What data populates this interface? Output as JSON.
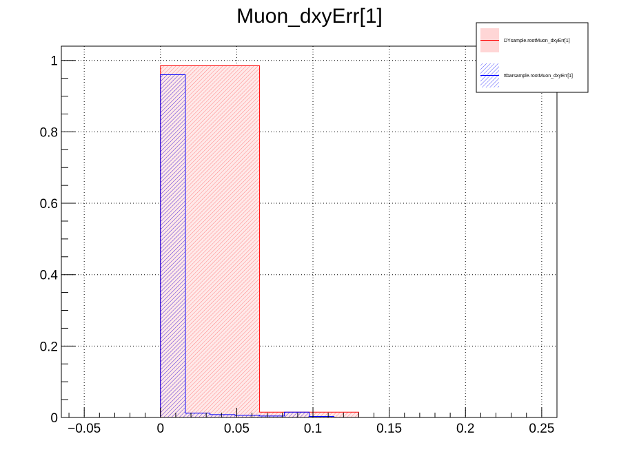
{
  "chart_data": {
    "type": "histogram",
    "title": "Muon_dxyErr[1]",
    "xlabel": "",
    "ylabel": "",
    "xlim": [
      -0.065,
      0.26
    ],
    "ylim": [
      0,
      1.04
    ],
    "x_ticks": [
      -0.05,
      0,
      0.05,
      0.1,
      0.15,
      0.2,
      0.25
    ],
    "x_tick_labels": [
      "−0.05",
      "0",
      "0.05",
      "0.1",
      "0.15",
      "0.2",
      "0.25"
    ],
    "y_ticks": [
      0,
      0.2,
      0.4,
      0.6,
      0.8,
      1
    ],
    "y_tick_labels": [
      "0",
      "0.2",
      "0.4",
      "0.6",
      "0.8",
      "1"
    ],
    "grid": true,
    "legend_position": "top-right",
    "series": [
      {
        "name": "DYsample.rootMuon_dxyErr[1]",
        "color": "#ff0000",
        "fill": "#ff0000",
        "hatch": "red-hatch",
        "bin_edges": [
          0,
          0.065,
          0.13
        ],
        "values": [
          0.985,
          0.015
        ]
      },
      {
        "name": "ttbarsample.rootMuon_dxyErr[1]",
        "color": "#0000ff",
        "fill": "#0000ff",
        "hatch": "blue-hatch",
        "bin_edges": [
          0,
          0.0163,
          0.0325,
          0.0488,
          0.065,
          0.0813,
          0.0975,
          0.1138,
          0.13,
          0.1463,
          0.1625,
          0.1788,
          0.195,
          0.2113,
          0.2275,
          0.2438,
          0.26
        ],
        "values": [
          0.96,
          0.012,
          0.008,
          0.006,
          0.004,
          0.015,
          0.003,
          0,
          0,
          0,
          0,
          0,
          0,
          0,
          0,
          0
        ]
      }
    ]
  }
}
